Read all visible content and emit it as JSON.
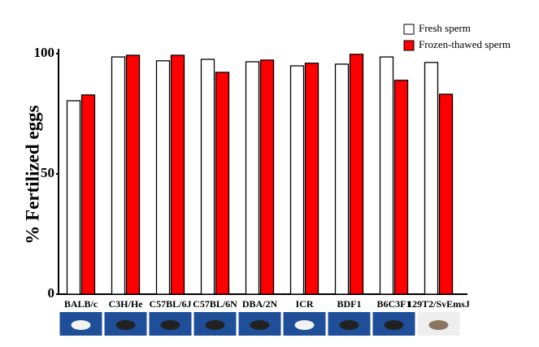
{
  "chart_data": {
    "type": "bar",
    "y_label": "% Fertilized eggs",
    "categories": [
      "BALB/c",
      "C3H/He",
      "C57BL/6J",
      "C57BL/6N",
      "DBA/2N",
      "ICR",
      "BDF1",
      "B6C3F1",
      "129T2/SvEmsJ"
    ],
    "series": [
      {
        "name": "Fresh sperm",
        "color": "#ffffff",
        "values": [
          80.4,
          98.6,
          97,
          97.6,
          96.6,
          94.9,
          95.6,
          98.6,
          96.3
        ]
      },
      {
        "name": "Frozen-thawed sperm",
        "color": "#ff0000",
        "values": [
          82.8,
          99.3,
          99.3,
          92.2,
          97.3,
          96,
          99.7,
          88.9,
          83.1
        ]
      }
    ],
    "ylim": [
      0,
      102
    ],
    "yticks": [
      0,
      50,
      100
    ],
    "grid": false,
    "legend": "top-right"
  }
}
